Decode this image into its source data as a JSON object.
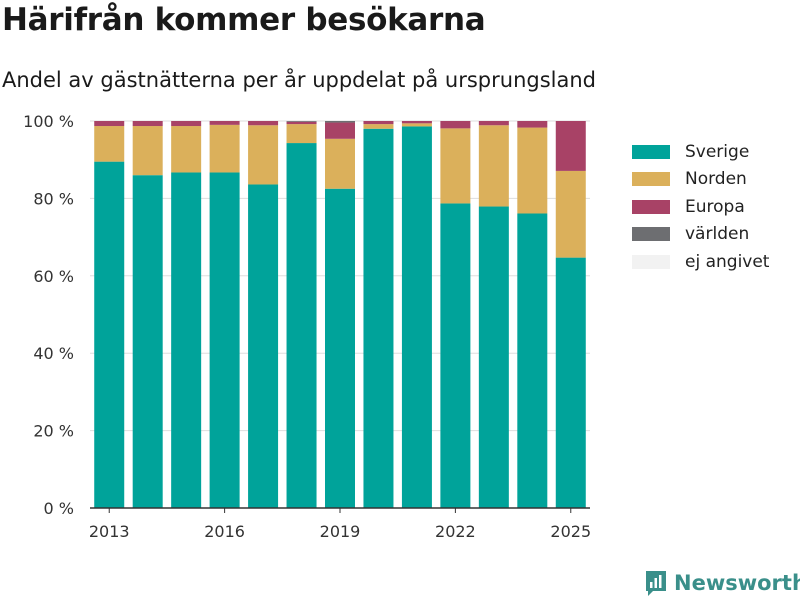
{
  "header": {
    "title": "Härifrån kommer besökarna",
    "subtitle": "Andel av gästnätterna per år uppdelat på ursprungsland"
  },
  "brand": {
    "name": "Newsworthy",
    "icon": "newsworthy-logo-icon",
    "color": "#3a8f8a"
  },
  "chart_data": {
    "type": "bar",
    "stacked": true,
    "categories": [
      2013,
      2014,
      2015,
      2016,
      2017,
      2018,
      2019,
      2020,
      2021,
      2022,
      2023,
      2024,
      2025
    ],
    "x_ticks": [
      "2013",
      "2016",
      "2019",
      "2022",
      "2025"
    ],
    "y_ticks": [
      "0 %",
      "20 %",
      "40 %",
      "60 %",
      "80 %",
      "100 %"
    ],
    "ylim": [
      0,
      100
    ],
    "grid": true,
    "legend_position": "right",
    "series": [
      {
        "name": "Sverige",
        "color": "#00a39a",
        "values": [
          89.5,
          86,
          86.7,
          86.7,
          83.6,
          94.3,
          82.5,
          98,
          98.6,
          78.7,
          77.9,
          76.1,
          64.7
        ]
      },
      {
        "name": "Norden",
        "color": "#dbb05b",
        "values": [
          9.2,
          12.7,
          12,
          12.3,
          15.3,
          4.9,
          12.9,
          1.2,
          0.8,
          19.4,
          21,
          22.2,
          22.4
        ]
      },
      {
        "name": "Europa",
        "color": "#a84266",
        "values": [
          1.3,
          1.3,
          1.3,
          1,
          1.1,
          0.6,
          4.2,
          0.8,
          0.6,
          1.9,
          1.1,
          1.7,
          12.9
        ]
      },
      {
        "name": "världen",
        "color": "#6d6e71",
        "values": [
          0,
          0,
          0,
          0,
          0,
          0.2,
          0.4,
          0,
          0,
          0,
          0,
          0,
          0
        ]
      },
      {
        "name": "ej angivet",
        "color": "#f2f2f2",
        "values": [
          0,
          0,
          0,
          0,
          0,
          0,
          0,
          0,
          0,
          0,
          0,
          0,
          0
        ]
      }
    ]
  }
}
